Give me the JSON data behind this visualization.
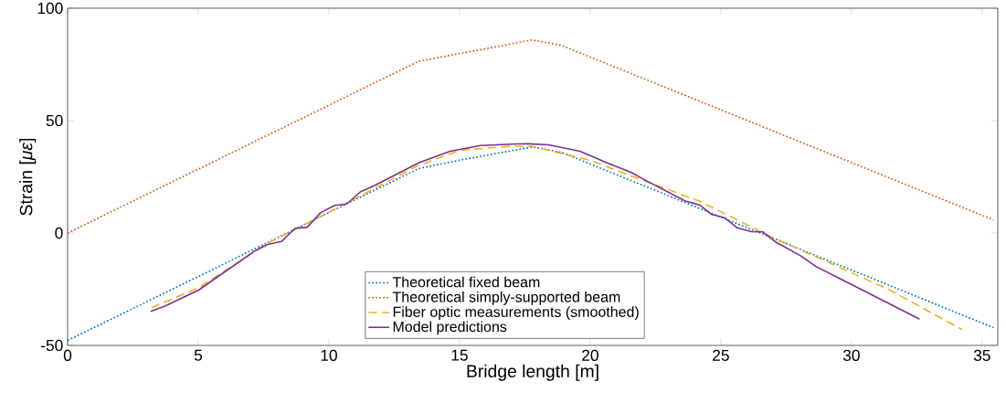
{
  "chart_data": {
    "type": "line",
    "xlabel": "Bridge length [m]",
    "ylabel": "Strain [*με*]",
    "xlim": [
      0,
      35.6
    ],
    "ylim": [
      -50,
      100
    ],
    "xticks": [
      0,
      5,
      10,
      15,
      20,
      25,
      30,
      35
    ],
    "yticks": [
      -50,
      0,
      50,
      100
    ],
    "grid": false,
    "legend": "bottom",
    "marker": "none",
    "series": [
      {
        "name": "Theoretical fixed beam",
        "color": "#0072bd",
        "line_style": "dotted",
        "x": [
          0,
          13.44,
          15,
          17.78,
          18.9,
          35.44
        ],
        "values": [
          -47.8,
          28.7,
          32.4,
          38.3,
          35.9,
          -42.1
        ]
      },
      {
        "name": "Theoretical simply-supported beam",
        "color": "#d95319",
        "line_style": "dotted",
        "x": [
          0,
          13.44,
          17.78,
          18.89,
          35.44
        ],
        "values": [
          0,
          76.4,
          85.9,
          83.5,
          5.8
        ]
      },
      {
        "name": "Fiber optic measurements (smoothed)",
        "color": "#edb120",
        "line_style": "dashed",
        "x": [
          3.21,
          5,
          7.65,
          9.98,
          13.36,
          15,
          16.96,
          17.78,
          19.97,
          22.14,
          24.18,
          25.39,
          26.71,
          28.99,
          31.41,
          34.23
        ],
        "values": [
          -33.2,
          -24.5,
          -4.5,
          9.1,
          29.7,
          36.8,
          38.6,
          38.6,
          32.4,
          22.9,
          14.2,
          7.2,
          -0.5,
          -12.4,
          -25.0,
          -42.9
        ]
      },
      {
        "name": "Model predictions",
        "color": "#7e2f8e",
        "line_style": "solid",
        "x": [
          3.18,
          3.7,
          5.01,
          7.19,
          7.65,
          8.18,
          8.7,
          9.17,
          9.69,
          10.22,
          10.68,
          11.2,
          11.73,
          13.47,
          14.64,
          15.8,
          17.2,
          17.68,
          18.41,
          19.61,
          20.69,
          21.54,
          22.14,
          23.64,
          24.18,
          24.66,
          25.15,
          25.63,
          26.17,
          26.6,
          27.14,
          28.04,
          28.64,
          29.6,
          32.61
        ],
        "values": [
          -34.9,
          -32.6,
          -25.4,
          -7.8,
          -5.1,
          -3.8,
          2.0,
          2.6,
          9.1,
          12.3,
          12.9,
          18.3,
          21.0,
          31.4,
          36.4,
          38.9,
          39.6,
          39.7,
          39.2,
          36.4,
          31.0,
          27.1,
          23.3,
          14.2,
          12.5,
          8.2,
          6.8,
          2.3,
          0.6,
          0.5,
          -4.3,
          -10.0,
          -14.9,
          -20.5,
          -38.3
        ]
      }
    ]
  }
}
